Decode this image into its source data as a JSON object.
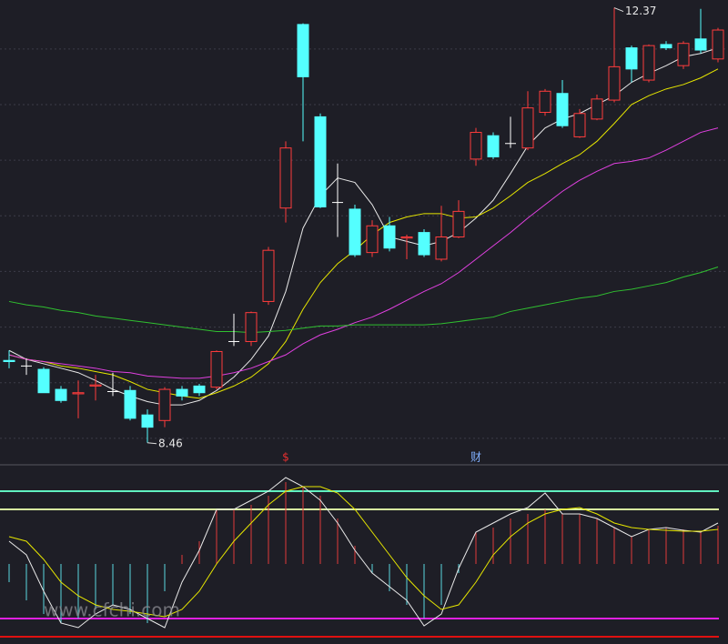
{
  "chart_data": [
    {
      "type": "candlestick",
      "open": [
        9.2,
        9.15,
        9.12,
        8.94,
        8.9,
        8.97,
        8.92,
        8.93,
        8.71,
        8.66,
        8.94,
        8.97,
        8.96,
        9.37,
        9.37,
        9.73,
        10.57,
        12.22,
        11.39,
        10.62,
        10.56,
        10.17,
        10.41,
        10.3,
        10.35,
        10.11,
        10.31,
        11.01,
        11.22,
        11.15,
        11.11,
        11.43,
        11.6,
        11.21,
        11.37,
        11.54,
        12.01,
        11.72,
        12.04,
        11.85,
        12.09,
        11.91
      ],
      "high": [
        9.29,
        9.22,
        9.14,
        8.97,
        9.02,
        9.07,
        9.09,
        8.97,
        8.76,
        8.96,
        8.97,
        8.99,
        9.29,
        9.62,
        9.64,
        10.22,
        11.17,
        12.23,
        11.42,
        10.97,
        10.6,
        10.46,
        10.49,
        10.33,
        10.38,
        10.59,
        10.64,
        11.29,
        11.25,
        11.39,
        11.62,
        11.64,
        11.72,
        11.46,
        11.59,
        12.37,
        12.03,
        12.04,
        12.07,
        12.07,
        12.36,
        12.19
      ],
      "low": [
        9.13,
        9.07,
        8.91,
        8.82,
        8.68,
        8.84,
        8.88,
        8.66,
        8.46,
        8.6,
        8.84,
        8.88,
        8.94,
        9.33,
        9.33,
        9.7,
        10.44,
        11.17,
        10.57,
        10.31,
        10.13,
        10.13,
        10.18,
        10.11,
        10.13,
        10.09,
        10.3,
        10.95,
        11.01,
        11.11,
        11.09,
        11.4,
        11.29,
        11.2,
        11.36,
        11.52,
        11.7,
        11.7,
        11.99,
        11.82,
        11.96,
        11.88
      ],
      "close": [
        9.19,
        9.15,
        8.91,
        8.84,
        8.91,
        8.98,
        8.92,
        8.68,
        8.6,
        8.94,
        8.88,
        8.91,
        9.28,
        9.37,
        9.63,
        10.19,
        11.11,
        11.75,
        10.58,
        10.62,
        10.15,
        10.41,
        10.21,
        10.31,
        10.15,
        10.31,
        10.54,
        11.25,
        11.03,
        11.15,
        11.47,
        11.62,
        11.31,
        11.42,
        11.55,
        11.84,
        11.82,
        12.03,
        12.01,
        12.05,
        11.99,
        12.17
      ],
      "up_color": "#ff3c3c",
      "down_color": "#54ffff",
      "flat_color": "#ffffff",
      "series": [
        {
          "color": "#e8e8e8",
          "values": [
            9.29,
            9.21,
            9.17,
            9.13,
            9.09,
            9.02,
            8.94,
            8.88,
            8.83,
            8.8,
            8.8,
            8.84,
            8.93,
            9.05,
            9.21,
            9.42,
            9.82,
            10.39,
            10.68,
            10.84,
            10.8,
            10.6,
            10.31,
            10.27,
            10.23,
            10.27,
            10.35,
            10.48,
            10.64,
            10.88,
            11.13,
            11.29,
            11.37,
            11.42,
            11.5,
            11.58,
            11.7,
            11.78,
            11.85,
            11.93,
            11.96,
            12.01
          ]
        },
        {
          "color": "#e6e600",
          "values": [
            9.25,
            9.21,
            9.19,
            9.15,
            9.13,
            9.1,
            9.07,
            9.01,
            8.94,
            8.91,
            8.88,
            8.86,
            8.91,
            8.97,
            9.05,
            9.17,
            9.37,
            9.66,
            9.9,
            10.07,
            10.19,
            10.33,
            10.44,
            10.49,
            10.52,
            10.52,
            10.48,
            10.49,
            10.57,
            10.68,
            10.8,
            10.88,
            10.97,
            11.05,
            11.17,
            11.33,
            11.5,
            11.58,
            11.64,
            11.68,
            11.74,
            11.82
          ]
        },
        {
          "color": "#e040e0",
          "values": [
            9.25,
            9.21,
            9.19,
            9.17,
            9.15,
            9.13,
            9.1,
            9.09,
            9.06,
            9.05,
            9.04,
            9.04,
            9.06,
            9.09,
            9.13,
            9.19,
            9.25,
            9.35,
            9.43,
            9.48,
            9.54,
            9.59,
            9.66,
            9.74,
            9.82,
            9.89,
            9.99,
            10.11,
            10.23,
            10.35,
            10.48,
            10.6,
            10.72,
            10.82,
            10.9,
            10.97,
            10.99,
            11.02,
            11.09,
            11.17,
            11.25,
            11.29
          ]
        },
        {
          "color": "#30c030",
          "values": [
            9.73,
            9.7,
            9.68,
            9.65,
            9.63,
            9.6,
            9.58,
            9.56,
            9.54,
            9.52,
            9.5,
            9.48,
            9.46,
            9.46,
            9.45,
            9.46,
            9.47,
            9.49,
            9.51,
            9.51,
            9.52,
            9.52,
            9.52,
            9.52,
            9.52,
            9.53,
            9.55,
            9.57,
            9.59,
            9.64,
            9.67,
            9.7,
            9.73,
            9.76,
            9.78,
            9.82,
            9.84,
            9.87,
            9.9,
            9.95,
            9.99,
            10.04
          ]
        }
      ],
      "ylim": [
        8.27,
        12.44
      ],
      "grid_values": [
        8.5,
        9,
        9.5,
        10,
        10.5,
        11,
        11.5,
        12
      ],
      "grid": true
    },
    {
      "type": "indicator",
      "values": [
        -20,
        -40,
        -55,
        -65,
        -60,
        -50,
        -45,
        -55,
        -65,
        -30,
        10,
        25,
        60,
        60,
        65,
        75,
        90,
        85,
        75,
        50,
        20,
        -10,
        -30,
        -45,
        -60,
        -45,
        -10,
        35,
        40,
        50,
        55,
        60,
        55,
        55,
        50,
        40,
        30,
        38,
        40,
        38,
        35,
        42
      ],
      "positive_color": "#e03a3a",
      "negative_color": "#5ad8e0",
      "series": [
        {
          "color": "#e8e8e8",
          "values": [
            25,
            10,
            -30,
            -65,
            -70,
            -55,
            -45,
            -50,
            -60,
            -70,
            -20,
            15,
            60,
            60,
            70,
            80,
            95,
            85,
            70,
            45,
            15,
            -10,
            -25,
            -40,
            -68,
            -55,
            -5,
            35,
            45,
            55,
            62,
            78,
            55,
            55,
            50,
            40,
            30,
            38,
            40,
            37,
            35,
            45
          ]
        },
        {
          "color": "#e6e600",
          "values": [
            30,
            25,
            5,
            -20,
            -35,
            -45,
            -50,
            -52,
            -55,
            -58,
            -50,
            -30,
            0,
            25,
            45,
            65,
            80,
            85,
            85,
            78,
            60,
            35,
            10,
            -15,
            -35,
            -50,
            -45,
            -20,
            10,
            30,
            45,
            55,
            60,
            62,
            55,
            45,
            40,
            38,
            37,
            36,
            36,
            38
          ]
        }
      ],
      "levels": [
        {
          "value": 80,
          "color": "#60f0c0"
        },
        {
          "value": 60,
          "color": "#d8f0a0"
        },
        {
          "value": -60,
          "color": "#e020e0"
        },
        {
          "value": -80,
          "color": "#e01010"
        }
      ],
      "events": [
        null,
        null,
        null,
        null,
        null,
        null,
        null,
        null,
        null,
        null,
        null,
        null,
        null,
        null,
        null,
        null,
        {
          "text": "$",
          "color": "#e83030"
        },
        null,
        null,
        null,
        null,
        null,
        null,
        null,
        null,
        null,
        null,
        {
          "text": "财",
          "color": "#80b0ff"
        },
        null,
        null,
        null,
        null,
        null,
        null,
        null,
        null,
        null,
        null,
        null,
        null,
        null,
        null
      ],
      "watermark": "www.cfchi.com",
      "ylim": [
        -90,
        110
      ]
    }
  ]
}
